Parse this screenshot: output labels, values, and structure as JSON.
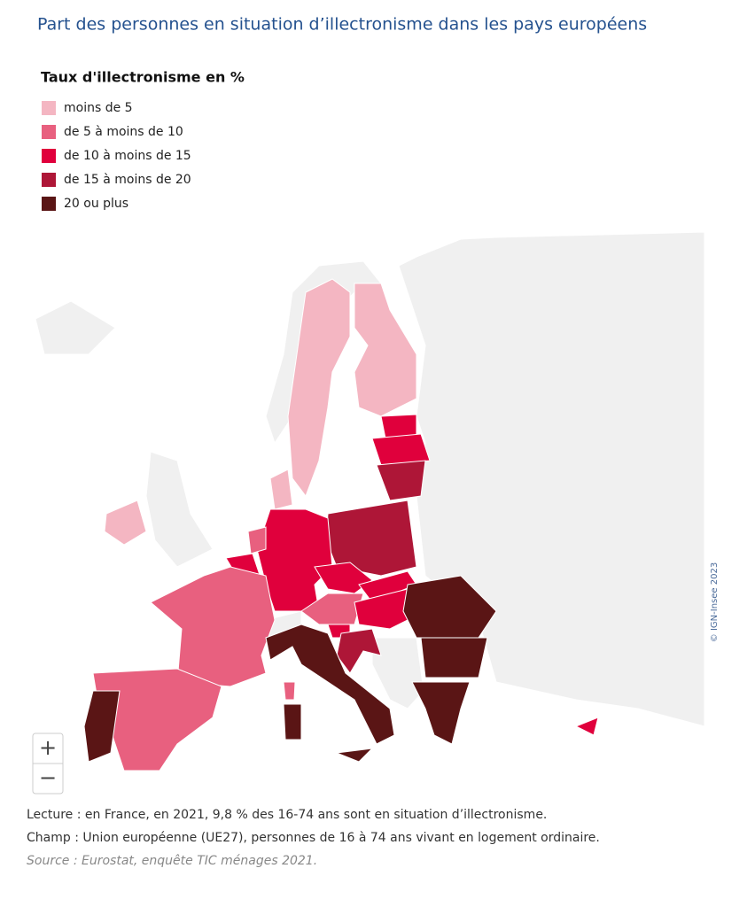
{
  "title": "Part des personnes en situation d’illectronisme dans les pays européens",
  "legend": {
    "title": "Taux d'illectronisme en %",
    "items": [
      {
        "label": "moins de 5",
        "color": "#f4b6c2"
      },
      {
        "label": "de 5 à moins de 10",
        "color": "#e8607f"
      },
      {
        "label": "de 10 à moins de 15",
        "color": "#e0003c"
      },
      {
        "label": "de 15 à moins de 20",
        "color": "#ae1637"
      },
      {
        "label": "20 ou plus",
        "color": "#5a1515"
      }
    ]
  },
  "zoom": {
    "in": "+",
    "out": "−"
  },
  "attribution": "© IGN-Insee 2023",
  "notes": {
    "lecture": "Lecture : en France, en 2021, 9,8 % des 16-74 ans sont en situation d’illectronisme.",
    "champ": "Champ : Union européenne (UE27), personnes de 16 à 74 ans vivant en logement ordinaire.",
    "source": "Source : Eurostat, enquête TIC ménages 2021."
  }
}
